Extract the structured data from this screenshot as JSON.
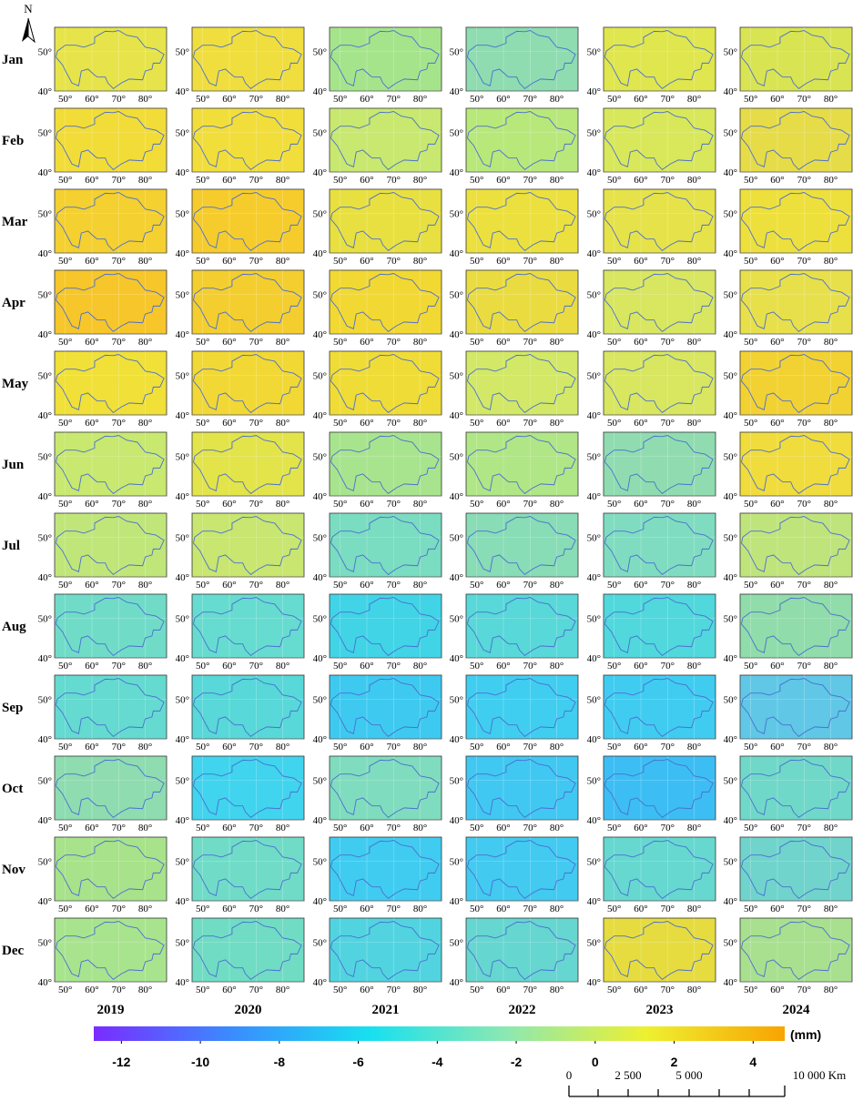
{
  "north": "N",
  "months": [
    "Jan",
    "Feb",
    "Mar",
    "Apr",
    "May",
    "Jun",
    "Jul",
    "Aug",
    "Sep",
    "Oct",
    "Nov",
    "Dec"
  ],
  "years": [
    "2019",
    "2020",
    "2021",
    "2022",
    "2023",
    "2024"
  ],
  "map": {
    "xlim": [
      46,
      88
    ],
    "ylim": [
      40,
      56
    ],
    "lon_ticks": [
      {
        "value": 50,
        "label": "50°"
      },
      {
        "value": 60,
        "label": "60°"
      },
      {
        "value": 70,
        "label": "70°"
      },
      {
        "value": 80,
        "label": "80°"
      }
    ],
    "lat_ticks": [
      {
        "value": 40,
        "label": "40°"
      },
      {
        "value": 50,
        "label": "50°"
      }
    ],
    "outline_color": "#4a6fd0",
    "panel_colors": [
      [
        "#e6e44a",
        "#f0de3e",
        "#a6e48c",
        "#8edcb0",
        "#dfe64e",
        "#d9e452"
      ],
      [
        "#f2dc38",
        "#f2de3a",
        "#c8e870",
        "#b8e87a",
        "#d8e85a",
        "#e6dc48"
      ],
      [
        "#f4d030",
        "#f6cc2c",
        "#e8e040",
        "#ece03e",
        "#e6e24a",
        "#eee03c"
      ],
      [
        "#f6c62a",
        "#f4ce2e",
        "#f2d832",
        "#eadc40",
        "#d8e660",
        "#e8e04a"
      ],
      [
        "#f0e038",
        "#f2d834",
        "#f0dc36",
        "#d2e866",
        "#d8e660",
        "#f2d232"
      ],
      [
        "#c8e870",
        "#e2e44a",
        "#a8e48e",
        "#b0e686",
        "#90dcb0",
        "#f0dc3c"
      ],
      [
        "#c0e67a",
        "#c8e670",
        "#7adcc0",
        "#88dcb6",
        "#80dcc0",
        "#c0e47c"
      ],
      [
        "#70dcc8",
        "#66dcd0",
        "#40d4e6",
        "#58d8d8",
        "#50d8dc",
        "#90dcaa"
      ],
      [
        "#64dad0",
        "#58d8d8",
        "#3ecaf0",
        "#40cef0",
        "#40ccf0",
        "#60c8e6"
      ],
      [
        "#8edcb0",
        "#40d4ee",
        "#80dcbe",
        "#40c8f2",
        "#3cbef4",
        "#70d8c8"
      ],
      [
        "#a8e28a",
        "#70dcc8",
        "#40ccf0",
        "#42caf0",
        "#66d8d0",
        "#70d4cc"
      ],
      [
        "#a8e48e",
        "#70dcc4",
        "#52d4e0",
        "#66d6d0",
        "#e6dc40",
        "#a8e090"
      ]
    ]
  },
  "colorbar": {
    "lim": [
      -12.7,
      4.8
    ],
    "ticks": [
      -12,
      -10,
      -8,
      -6,
      -4,
      -2,
      0,
      2,
      4
    ],
    "unit": "(mm)",
    "colors": [
      "#7a2cff",
      "#3a8cff",
      "#18e0f0",
      "#8ee8b0",
      "#eef030",
      "#f8a400"
    ]
  },
  "scale_bar": {
    "labels": [
      "0",
      "2 500",
      "5 000",
      "10 000 Km"
    ]
  }
}
